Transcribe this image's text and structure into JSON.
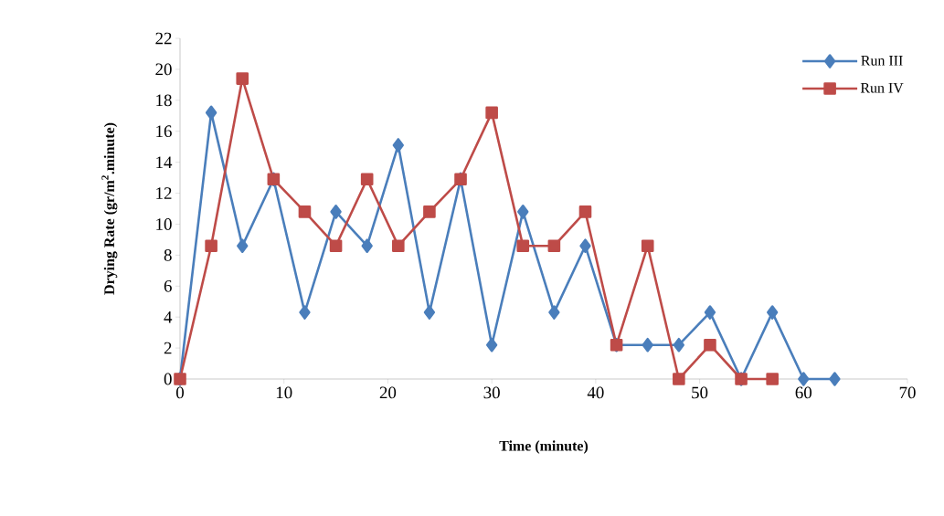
{
  "chart_data": {
    "type": "line",
    "xlabel": "Time (minute)",
    "ylabel": "Drying Rate (gr/m$^{2}$.minute)",
    "xlim": [
      0,
      70
    ],
    "xticks": [
      0,
      10,
      20,
      30,
      40,
      50,
      60,
      70
    ],
    "ylim": [
      0,
      22
    ],
    "yticks": [
      0,
      2,
      4,
      6,
      8,
      10,
      12,
      14,
      16,
      18,
      20,
      22
    ],
    "grid": false,
    "legend": "top right",
    "line_style": "solid",
    "series": [
      {
        "name": "Run III",
        "color": "#4a7ebb",
        "marker": "diamond",
        "x": [
          0,
          3,
          6,
          9,
          12,
          15,
          18,
          21,
          24,
          27,
          30,
          33,
          36,
          39,
          42,
          45,
          48,
          51,
          54,
          57,
          60,
          63
        ],
        "values": [
          0,
          17.2,
          8.6,
          12.9,
          4.3,
          10.8,
          8.6,
          15.1,
          4.3,
          12.9,
          2.2,
          10.8,
          4.3,
          8.6,
          2.2,
          2.2,
          2.2,
          4.3,
          0,
          4.3,
          0,
          0
        ]
      },
      {
        "name": "Run IV",
        "color": "#be4b48",
        "marker": "square",
        "x": [
          0,
          3,
          6,
          9,
          12,
          15,
          18,
          21,
          24,
          27,
          30,
          33,
          36,
          39,
          42,
          45,
          48,
          51,
          54,
          57
        ],
        "values": [
          0,
          8.6,
          19.4,
          12.9,
          10.8,
          8.6,
          12.9,
          8.6,
          10.8,
          12.9,
          17.2,
          8.6,
          8.6,
          10.8,
          2.2,
          8.6,
          0,
          2.2,
          0,
          0
        ]
      }
    ]
  }
}
